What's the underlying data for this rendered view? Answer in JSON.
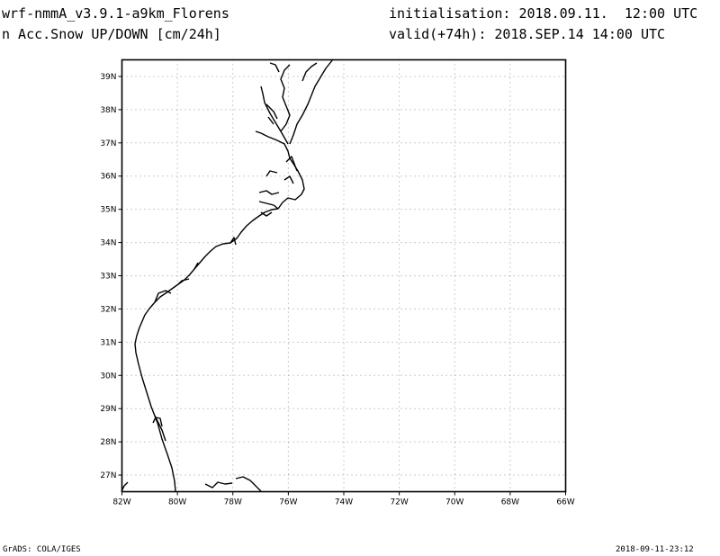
{
  "header": {
    "model": "wrf-nmmA_v3.9.1-a9km_Florens",
    "field": "n Acc.Snow UP/DOWN [cm/24h]",
    "init": "initialisation: 2018.09.11.  12:00 UTC",
    "valid": "valid(+74h): 2018.SEP.14 14:00 UTC"
  },
  "map": {
    "lon_range": [
      -82,
      -66
    ],
    "lat_range": [
      26.5,
      39.5
    ],
    "x_ticks": [
      {
        "lon": -82,
        "label": "82W"
      },
      {
        "lon": -80,
        "label": "80W"
      },
      {
        "lon": -78,
        "label": "78W"
      },
      {
        "lon": -76,
        "label": "76W"
      },
      {
        "lon": -74,
        "label": "74W"
      },
      {
        "lon": -72,
        "label": "72W"
      },
      {
        "lon": -70,
        "label": "70W"
      },
      {
        "lon": -68,
        "label": "68W"
      },
      {
        "lon": -66,
        "label": "66W"
      }
    ],
    "y_ticks": [
      {
        "lat": 27,
        "label": "27N"
      },
      {
        "lat": 28,
        "label": "28N"
      },
      {
        "lat": 29,
        "label": "29N"
      },
      {
        "lat": 30,
        "label": "30N"
      },
      {
        "lat": 31,
        "label": "31N"
      },
      {
        "lat": 32,
        "label": "32N"
      },
      {
        "lat": 33,
        "label": "33N"
      },
      {
        "lat": 34,
        "label": "34N"
      },
      {
        "lat": 35,
        "label": "35N"
      },
      {
        "lat": 36,
        "label": "36N"
      },
      {
        "lat": 37,
        "label": "37N"
      },
      {
        "lat": 38,
        "label": "38N"
      },
      {
        "lat": 39,
        "label": "39N"
      }
    ],
    "grid": "dotted",
    "coast_color": "#000000"
  },
  "footer": {
    "left": "GrADS: COLA/IGES",
    "right": "2018-09-11-23:12"
  }
}
